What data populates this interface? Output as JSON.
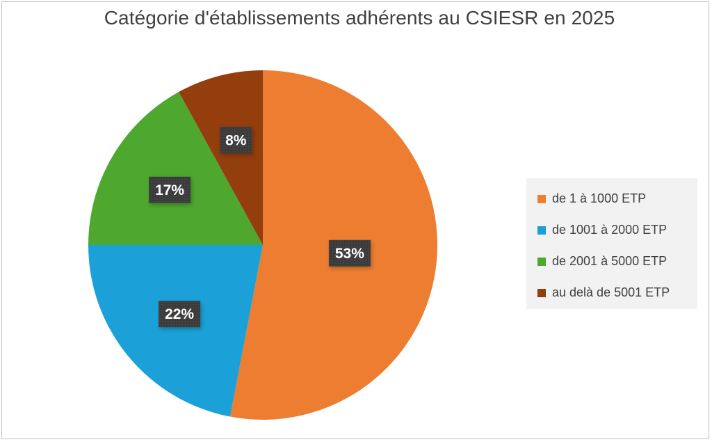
{
  "chart_data": {
    "type": "pie",
    "title": "Catégorie d'établissements adhérents au CSIESR en 2025",
    "slices": [
      {
        "label": "de 1 à 1000 ETP",
        "value": 53,
        "data_label": "53%",
        "color": "#ED7D31"
      },
      {
        "label": "de 1001 à 2000 ETP",
        "value": 22,
        "data_label": "22%",
        "color": "#1BA1D8"
      },
      {
        "label": "de 2001 à 5000 ETP",
        "value": 17,
        "data_label": "17%",
        "color": "#4EA72E"
      },
      {
        "label": "au delà de 5001 ETP",
        "value": 8,
        "data_label": "8%",
        "color": "#943D0D"
      }
    ],
    "legend_position": "right",
    "data_label_background": "#3b3b3b"
  }
}
